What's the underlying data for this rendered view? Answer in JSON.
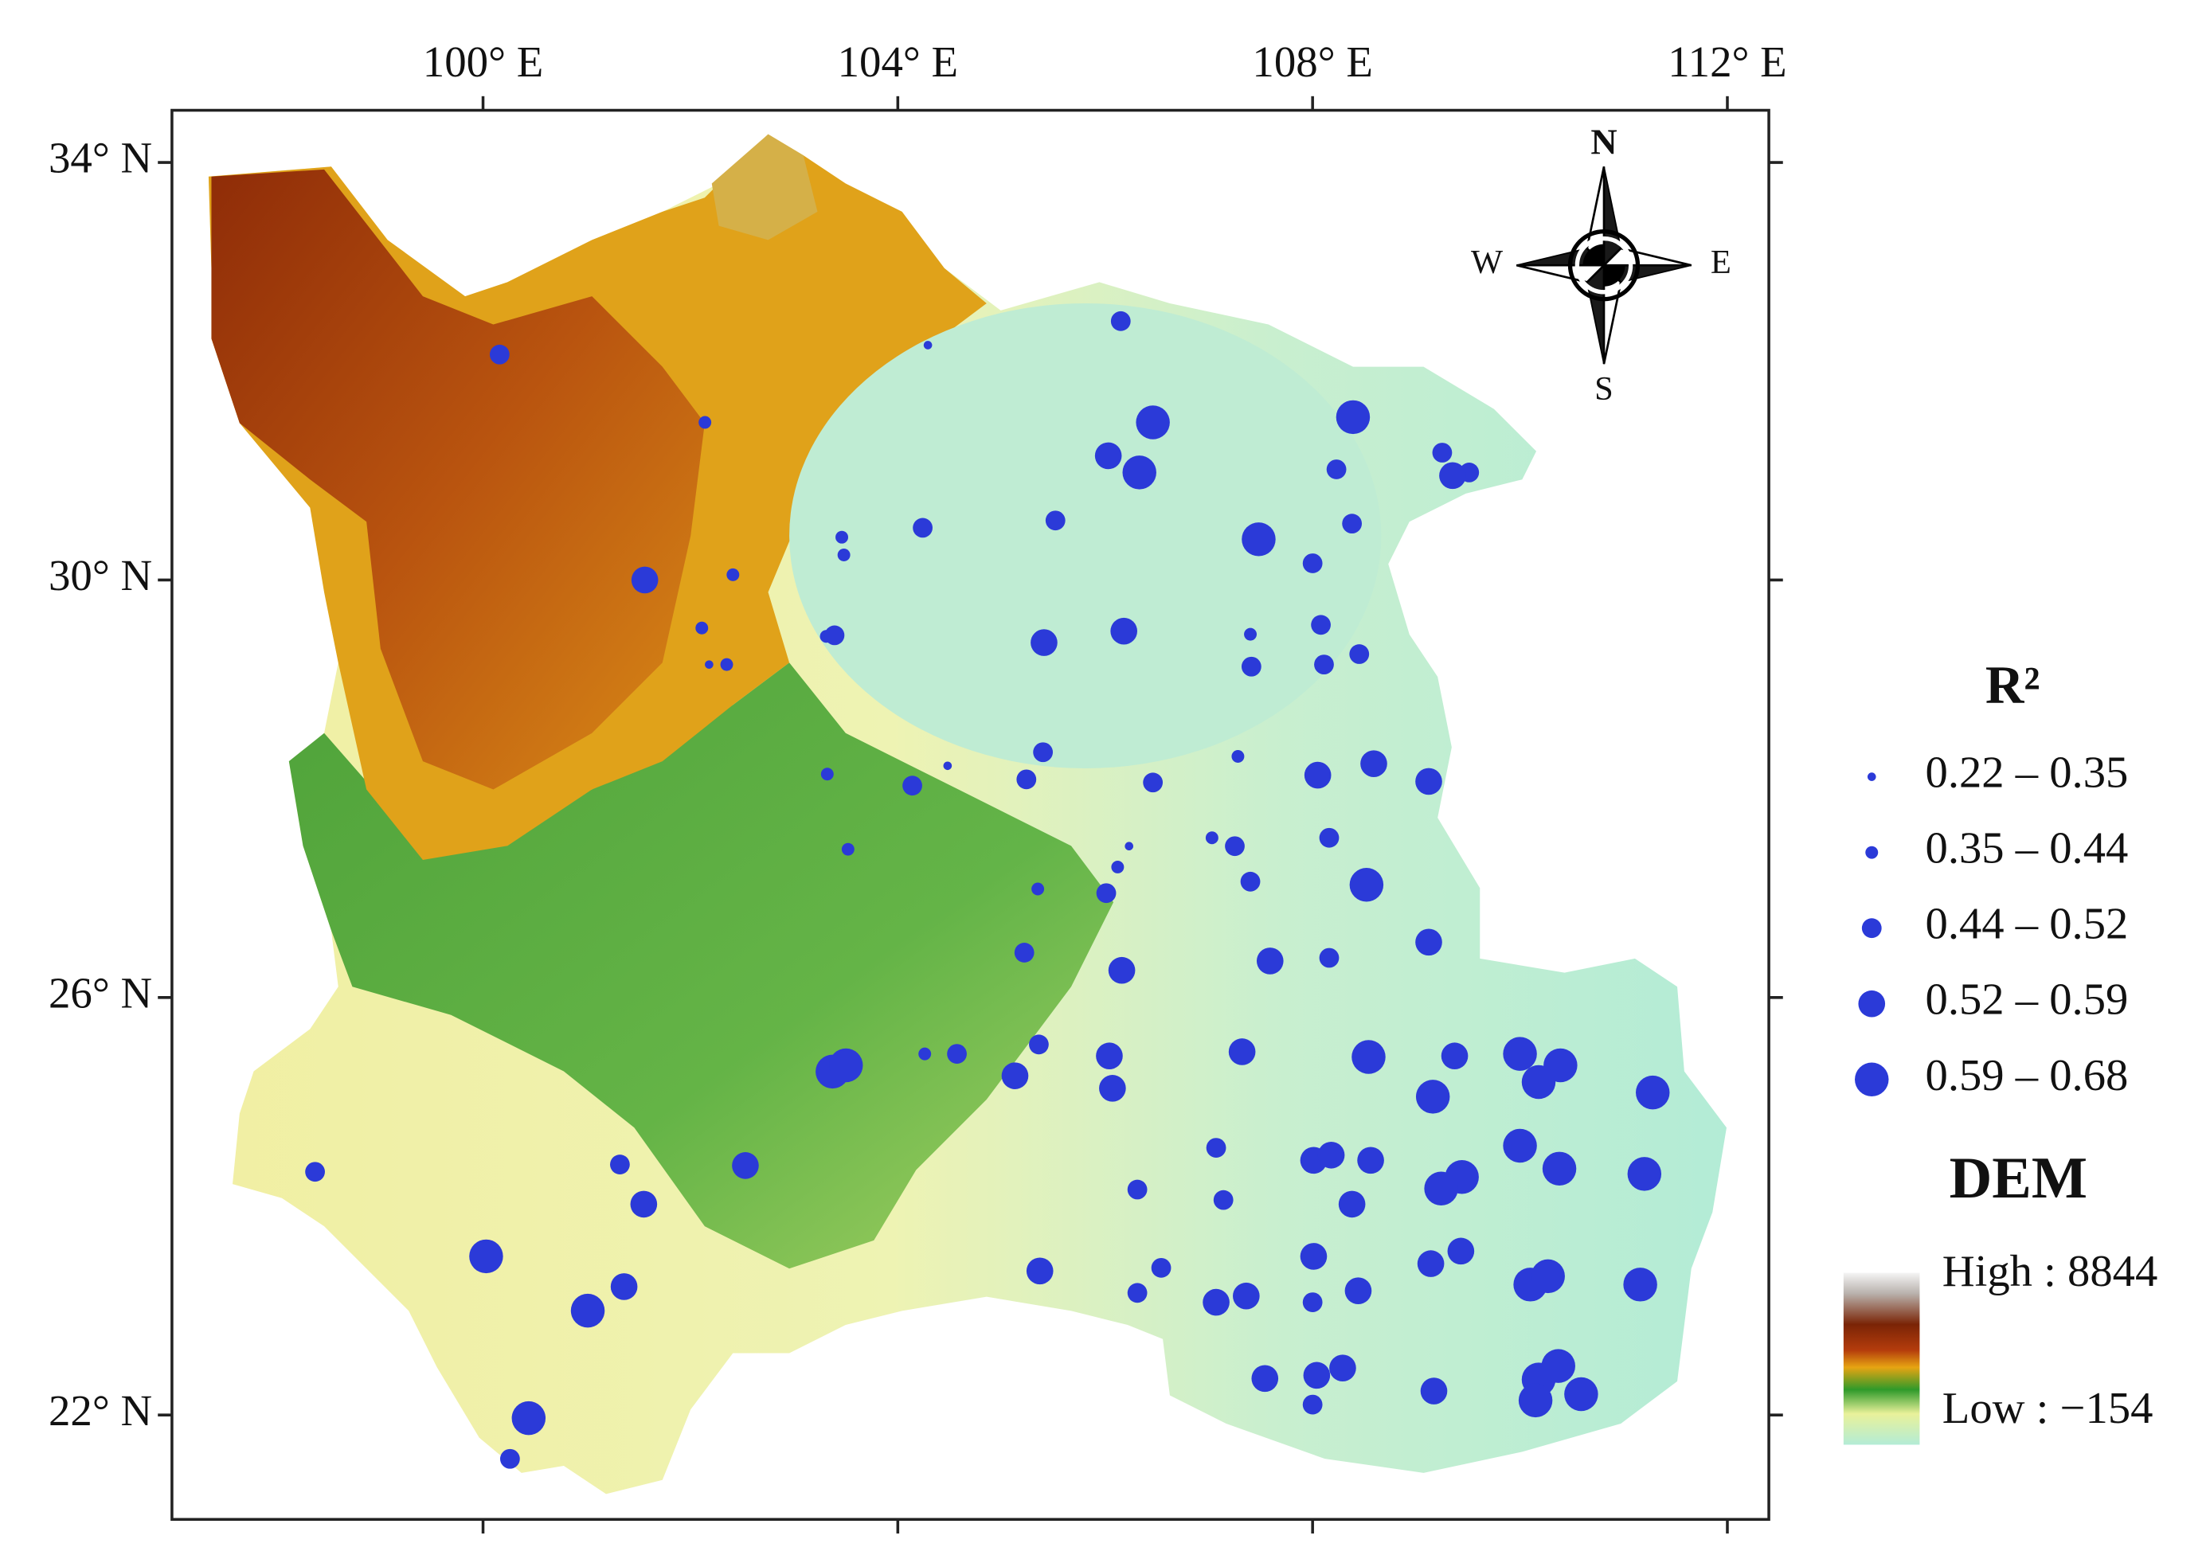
{
  "chart_data": {
    "type": "scatter",
    "xlim": [
      97,
      112.4
    ],
    "ylim": [
      21,
      34.5
    ],
    "xticks": [
      {
        "value": 100,
        "label": "100° E"
      },
      {
        "value": 104,
        "label": "104° E"
      },
      {
        "value": 108,
        "label": "108° E"
      },
      {
        "value": 112,
        "label": "112° E"
      }
    ],
    "yticks": [
      {
        "value": 22,
        "label": "22° N"
      },
      {
        "value": 26,
        "label": "26° N"
      },
      {
        "value": 30,
        "label": "30° N"
      },
      {
        "value": 34,
        "label": "34° N"
      }
    ],
    "legend_title": "R²",
    "series": [
      {
        "name": "0.22 – 0.35",
        "color": "#2b3ad8",
        "x": [
          104.29,
          102.18,
          104.48,
          106.23
        ],
        "y": [
          32.25,
          29.19,
          28.22,
          27.45
        ]
      },
      {
        "name": "0.35 – 0.44",
        "color": "#2b3ad8",
        "x": [
          104.26,
          103.46,
          103.48,
          102.41,
          102.14,
          102.11,
          102.35,
          103.32,
          103.52,
          105.35,
          106.12,
          107.03,
          107.28,
          107.4,
          103.31
        ],
        "y": [
          25.46,
          30.41,
          30.24,
          30.05,
          31.51,
          29.54,
          29.19,
          28.14,
          27.42,
          27.04,
          27.25,
          27.53,
          28.31,
          29.48,
          29.46
        ]
      },
      {
        "name": "0.44 – 0.52",
        "color": "#2b3ad8",
        "x": [
          100.16,
          106.15,
          105.52,
          109.25,
          109.51,
          104.24,
          107.41,
          108.45,
          108.11,
          108.16,
          107.4,
          107.25,
          108.16,
          105.36,
          104.57,
          101.32,
          100.26,
          98.38,
          106.31,
          106.54,
          107.14,
          106.31,
          108.0,
          106.01,
          108.23,
          108.38,
          108.0,
          108.08,
          105.22,
          106.46,
          105.4,
          105.24,
          104.14,
          103.39,
          107.07,
          108.0
        ],
        "y": [
          32.16,
          32.48,
          30.57,
          31.22,
          31.03,
          30.5,
          29.17,
          29.29,
          29.19,
          27.53,
          27.11,
          27.45,
          26.38,
          25.55,
          25.46,
          24.4,
          21.58,
          24.33,
          23.17,
          23.41,
          24.06,
          24.16,
          22.1,
          27.0,
          31.06,
          30.54,
          30.16,
          29.57,
          26.43,
          28.06,
          28.35,
          28.09,
          28.03,
          29.47,
          24.56,
          23.08
        ]
      },
      {
        "name": "0.52 – 0.59",
        "color": "#2b3ad8",
        "x": [
          109.35,
          106.07,
          106.04,
          105.13,
          105.37,
          101.55,
          101.36,
          102.53,
          108.05,
          108.59,
          109.12,
          109.12,
          107.59,
          106.16,
          107.32,
          108.01,
          108.18,
          108.56,
          109.37,
          109.14,
          109.43,
          108.38,
          108.01,
          108.44,
          107.54,
          108.04,
          108.29,
          109.17,
          107.07,
          107.36,
          106.18,
          105.41,
          101.56,
          106.03
        ],
        "y": [
          31.0,
          25.13,
          25.44,
          25.25,
          23.38,
          24.02,
          23.23,
          24.39,
          28.13,
          28.24,
          28.07,
          26.53,
          26.35,
          26.26,
          25.48,
          24.44,
          24.49,
          24.44,
          25.44,
          23.45,
          23.57,
          24.02,
          23.52,
          23.19,
          22.35,
          22.38,
          22.45,
          22.23,
          23.08,
          23.14,
          29.51,
          29.4,
          30.0,
          31.19
        ]
      },
      {
        "name": "0.59 – 0.68",
        "color": "#2b3ad8",
        "x": [
          106.46,
          106.33,
          107.48,
          108.39,
          108.54,
          110.0,
          110.39,
          110.18,
          111.28,
          109.16,
          110.0,
          110.38,
          111.2,
          109.44,
          109.24,
          110.1,
          110.27,
          111.16,
          110.18,
          110.37,
          110.59,
          110.15,
          103.37,
          103.5,
          100.03,
          100.44,
          101.01,
          108.52
        ],
        "y": [
          31.51,
          31.03,
          30.39,
          31.56,
          25.43,
          25.46,
          25.35,
          25.19,
          25.09,
          25.05,
          24.58,
          24.36,
          24.31,
          24.28,
          24.17,
          23.25,
          23.33,
          23.25,
          22.34,
          22.47,
          22.2,
          22.14,
          25.29,
          25.35,
          23.52,
          21.97,
          23.0,
          27.08
        ]
      }
    ],
    "dem_legend": {
      "title": "DEM",
      "high_label": "High : 8844",
      "low_label": "Low : −154"
    },
    "compass": {
      "north": "N",
      "south": "S",
      "west": "W",
      "east": "E"
    }
  }
}
